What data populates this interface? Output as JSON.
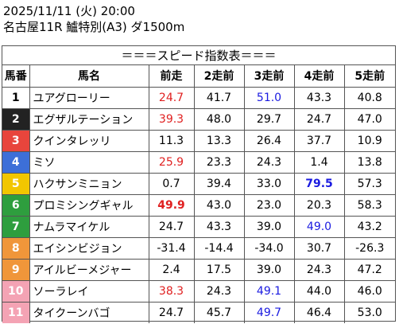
{
  "header": {
    "datetime": "2025/11/11 (火) 20:00",
    "race": "名古屋11R 鱸特別(A3) ダ1500m"
  },
  "table": {
    "caption": "＝＝＝スピード指数表＝＝＝",
    "columns": [
      "馬番",
      "馬名",
      "前走",
      "2走前",
      "3走前",
      "4走前",
      "5走前"
    ],
    "rows": [
      {
        "no": "1",
        "name": "ユアグローリー",
        "bg": "#ffffff",
        "fg": "#000000",
        "values": [
          {
            "v": "24.7",
            "c": "red"
          },
          {
            "v": "41.7"
          },
          {
            "v": "51.0",
            "c": "blue"
          },
          {
            "v": "43.3"
          },
          {
            "v": "40.8"
          }
        ]
      },
      {
        "no": "2",
        "name": "エグザルテーション",
        "bg": "#222222",
        "fg": "#ffffff",
        "values": [
          {
            "v": "39.3",
            "c": "red"
          },
          {
            "v": "48.0"
          },
          {
            "v": "29.7"
          },
          {
            "v": "24.7"
          },
          {
            "v": "47.0"
          }
        ]
      },
      {
        "no": "3",
        "name": "クインタレッリ",
        "bg": "#e8453c",
        "fg": "#ffffff",
        "values": [
          {
            "v": "11.3"
          },
          {
            "v": "13.3"
          },
          {
            "v": "26.4"
          },
          {
            "v": "37.7"
          },
          {
            "v": "10.9"
          }
        ]
      },
      {
        "no": "4",
        "name": "ミソ",
        "bg": "#3d6fd8",
        "fg": "#ffffff",
        "values": [
          {
            "v": "25.9",
            "c": "red"
          },
          {
            "v": "23.3"
          },
          {
            "v": "24.3"
          },
          {
            "v": "1.4"
          },
          {
            "v": "13.8"
          }
        ]
      },
      {
        "no": "5",
        "name": "ハクサンミニョン",
        "bg": "#f2c600",
        "fg": "#ffffff",
        "values": [
          {
            "v": "0.7"
          },
          {
            "v": "39.4"
          },
          {
            "v": "33.0"
          },
          {
            "v": "79.5",
            "c": "blue",
            "b": true
          },
          {
            "v": "57.3"
          }
        ]
      },
      {
        "no": "6",
        "name": "プロミシングギャル",
        "bg": "#2e9e3e",
        "fg": "#ffffff",
        "values": [
          {
            "v": "49.9",
            "c": "red",
            "b": true
          },
          {
            "v": "43.0"
          },
          {
            "v": "23.0"
          },
          {
            "v": "20.3"
          },
          {
            "v": "58.3"
          }
        ]
      },
      {
        "no": "7",
        "name": "ナムラマイケル",
        "bg": "#2e9e3e",
        "fg": "#ffffff",
        "values": [
          {
            "v": "24.7"
          },
          {
            "v": "43.3"
          },
          {
            "v": "39.0"
          },
          {
            "v": "49.0",
            "c": "blue"
          },
          {
            "v": "43.2"
          }
        ]
      },
      {
        "no": "8",
        "name": "エイシンビジョン",
        "bg": "#f0963a",
        "fg": "#ffffff",
        "values": [
          {
            "v": "-31.4"
          },
          {
            "v": "-14.4"
          },
          {
            "v": "-34.0"
          },
          {
            "v": "30.7"
          },
          {
            "v": "-26.3"
          }
        ]
      },
      {
        "no": "9",
        "name": "アイルビーメジャー",
        "bg": "#f0963a",
        "fg": "#ffffff",
        "values": [
          {
            "v": "2.4"
          },
          {
            "v": "17.5"
          },
          {
            "v": "39.0"
          },
          {
            "v": "24.3"
          },
          {
            "v": "47.2"
          }
        ]
      },
      {
        "no": "10",
        "name": "ソーラレイ",
        "bg": "#f4a3b4",
        "fg": "#ffffff",
        "values": [
          {
            "v": "38.3",
            "c": "red"
          },
          {
            "v": "24.3"
          },
          {
            "v": "49.1",
            "c": "blue"
          },
          {
            "v": "44.0"
          },
          {
            "v": "46.0"
          }
        ]
      },
      {
        "no": "11",
        "name": "タイクーンバゴ",
        "bg": "#f4a3b4",
        "fg": "#ffffff",
        "values": [
          {
            "v": "24.7"
          },
          {
            "v": "45.7"
          },
          {
            "v": "49.7",
            "c": "blue"
          },
          {
            "v": "46.4"
          },
          {
            "v": "53.0"
          }
        ]
      }
    ]
  }
}
